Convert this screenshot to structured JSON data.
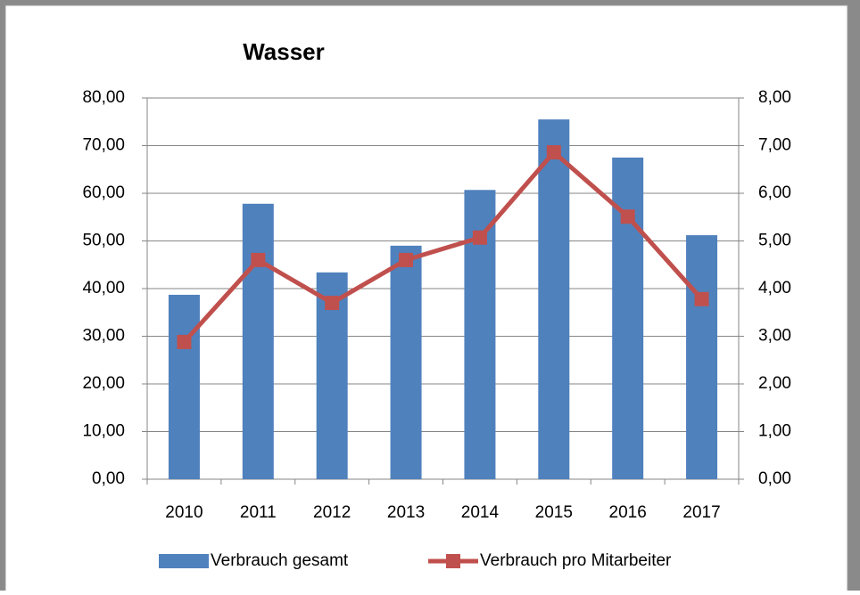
{
  "chart_data": {
    "type": "bar_line",
    "title": "Wasser",
    "categories": [
      "2010",
      "2011",
      "2012",
      "2013",
      "2014",
      "2015",
      "2016",
      "2017"
    ],
    "series": [
      {
        "name": "Verbrauch gesamt",
        "type": "bar",
        "color": "#4f81bd",
        "values": [
          38.7,
          57.8,
          43.4,
          49.0,
          60.7,
          75.5,
          67.5,
          51.2
        ]
      },
      {
        "name": "Verbrauch pro Mitarbeiter",
        "type": "line",
        "axis": "y2",
        "color": "#c0504d",
        "values": [
          2.88,
          4.6,
          3.7,
          4.6,
          5.07,
          6.86,
          5.51,
          3.78
        ]
      }
    ],
    "ylim": [
      0,
      80
    ],
    "yticks": [
      {
        "value": 0,
        "label": "0,00"
      },
      {
        "value": 10,
        "label": "10,00"
      },
      {
        "value": 20,
        "label": "20,00"
      },
      {
        "value": 30,
        "label": "30,00"
      },
      {
        "value": 40,
        "label": "40,00"
      },
      {
        "value": 50,
        "label": "50,00"
      },
      {
        "value": 60,
        "label": "60,00"
      },
      {
        "value": 70,
        "label": "70,00"
      },
      {
        "value": 80,
        "label": "80,00"
      }
    ],
    "y2lim": [
      0,
      8
    ],
    "y2ticks": [
      {
        "value": 0,
        "label": "0,00"
      },
      {
        "value": 1,
        "label": "1,00"
      },
      {
        "value": 2,
        "label": "2,00"
      },
      {
        "value": 3,
        "label": "3,00"
      },
      {
        "value": 4,
        "label": "4,00"
      },
      {
        "value": 5,
        "label": "5,00"
      },
      {
        "value": 6,
        "label": "6,00"
      },
      {
        "value": 7,
        "label": "7,00"
      },
      {
        "value": 8,
        "label": "8,00"
      }
    ],
    "grid": true,
    "legend": "bottom"
  }
}
